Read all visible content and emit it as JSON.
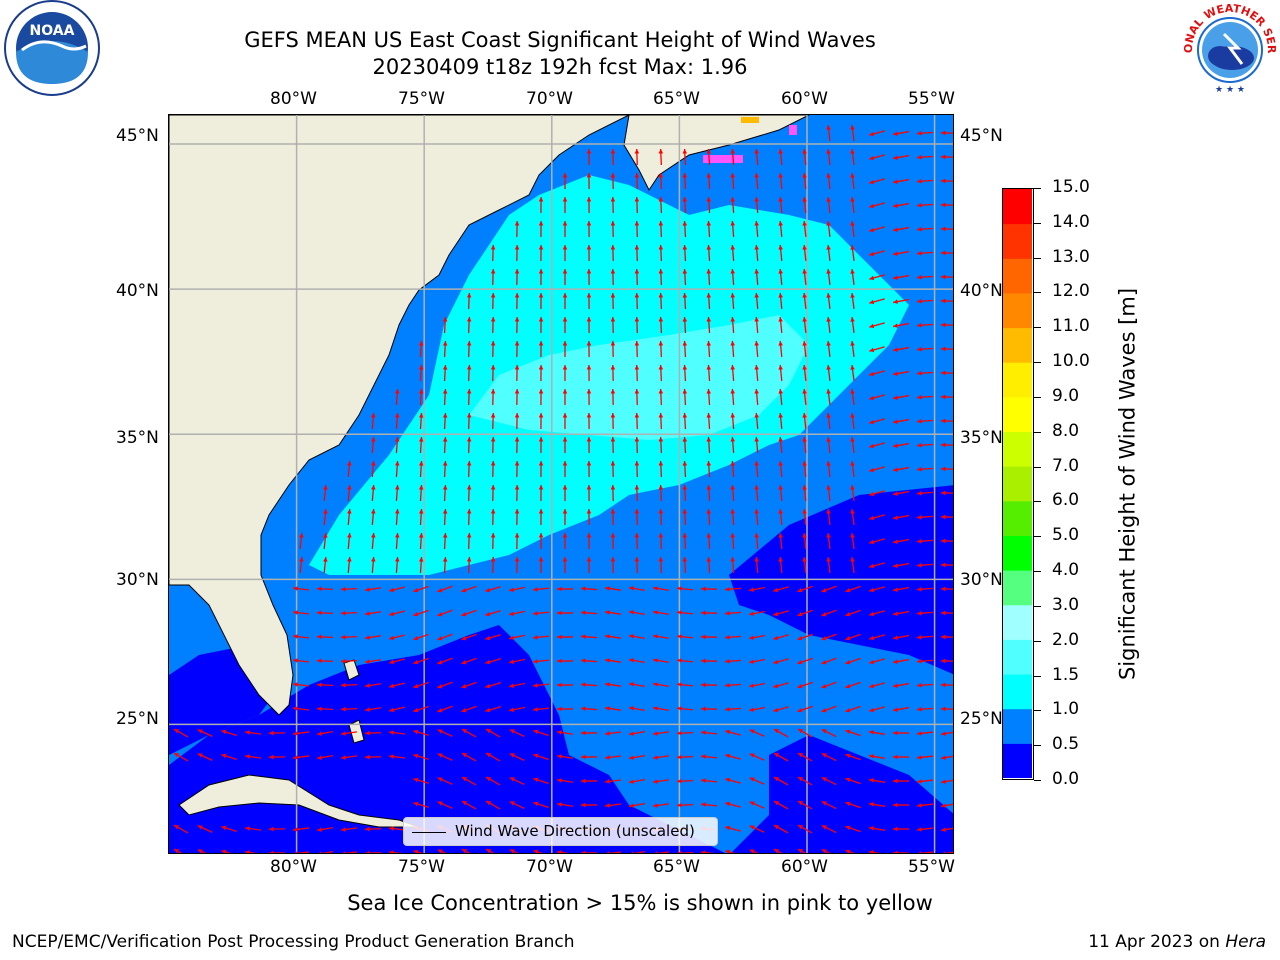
{
  "title_line1": "GEFS MEAN US East Coast Significant Height of Wind Waves",
  "title_line2": "20230409 t18z 192h fcst   Max: 1.96",
  "map": {
    "x_ticks": [
      "80°W",
      "75°W",
      "70°W",
      "65°W",
      "60°W",
      "55°W"
    ],
    "y_ticks": [
      "45°N",
      "40°N",
      "35°N",
      "30°N",
      "25°N"
    ],
    "lon_range": [
      -85,
      -54.2
    ],
    "lat_range": [
      20.5,
      46
    ],
    "land_color": "#efeedc",
    "ice_color": "#ff55ff",
    "arrow_color": "#ff0000",
    "grid_color": "#b0b0b0"
  },
  "colorbar": {
    "label": "Significant Height of Wind Waves [m]",
    "ticks": [
      "0.0",
      "0.5",
      "1.0",
      "1.5",
      "2.0",
      "3.0",
      "4.0",
      "5.0",
      "6.0",
      "7.0",
      "8.0",
      "9.0",
      "10.0",
      "11.0",
      "12.0",
      "13.0",
      "14.0",
      "15.0"
    ],
    "colors": [
      "#0000ff",
      "#0080ff",
      "#00ffff",
      "#50ffff",
      "#a0ffff",
      "#55ff80",
      "#00ff00",
      "#55ee00",
      "#aaee00",
      "#ccff00",
      "#ffff00",
      "#ffee00",
      "#ffbb00",
      "#ff8800",
      "#ff6600",
      "#ff3300",
      "#ff0000"
    ]
  },
  "legend_label": "Wind Wave Direction (unscaled)",
  "caption": "Sea Ice Concentration > 15% is shown in pink to yellow",
  "footer_left": "NCEP/EMC/Verification Post Processing Product Generation Branch",
  "footer_date": "11 Apr 2023 on",
  "footer_machine": "Hera",
  "logos": {
    "noaa": "NOAA",
    "nws": "NATIONAL WEATHER SERVICE"
  }
}
